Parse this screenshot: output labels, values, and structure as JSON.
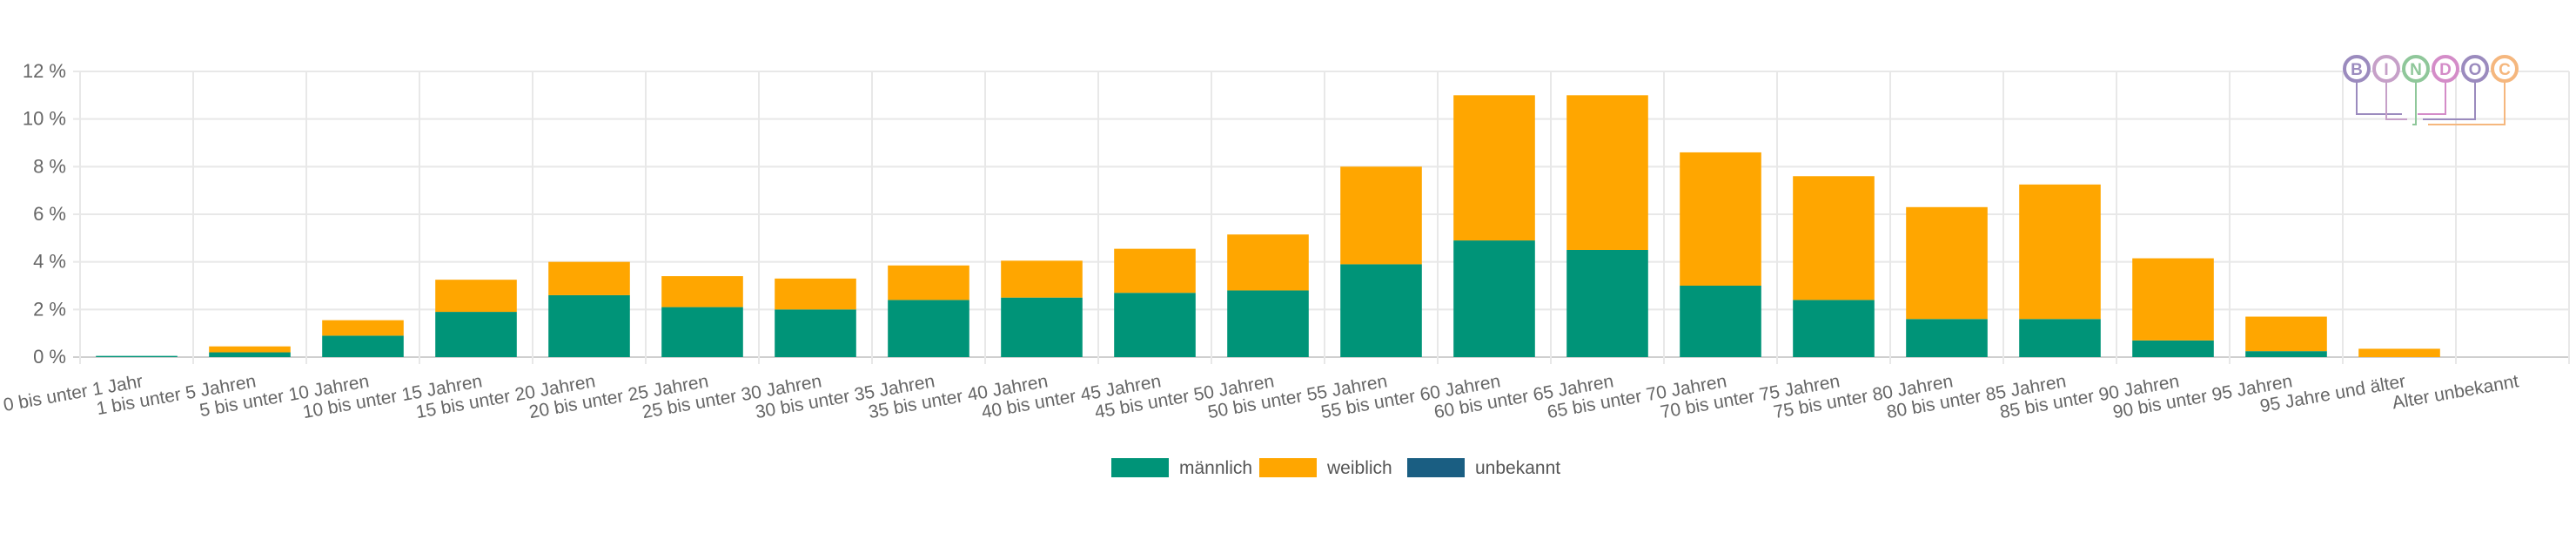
{
  "chart_data": {
    "type": "bar",
    "stacked": true,
    "categories": [
      "0 bis unter 1 Jahr",
      "1 bis unter 5 Jahren",
      "5 bis unter 10 Jahren",
      "10 bis unter 15 Jahren",
      "15 bis unter 20 Jahren",
      "20 bis unter 25 Jahren",
      "25 bis unter 30 Jahren",
      "30 bis unter 35 Jahren",
      "35 bis unter 40 Jahren",
      "40 bis unter 45 Jahren",
      "45 bis unter 50 Jahren",
      "50 bis unter 55 Jahren",
      "55 bis unter 60 Jahren",
      "60 bis unter 65 Jahren",
      "65 bis unter 70 Jahren",
      "70 bis unter 75 Jahren",
      "75 bis unter 80 Jahren",
      "80 bis unter 85 Jahren",
      "85 bis unter 90 Jahren",
      "90 bis unter 95 Jahren",
      "95 Jahre und älter",
      "Alter unbekannt"
    ],
    "series": [
      {
        "name": "männlich",
        "color": "#009478",
        "values": [
          0.05,
          0.2,
          0.9,
          1.9,
          2.6,
          2.1,
          2.0,
          2.4,
          2.5,
          2.7,
          2.8,
          3.9,
          4.9,
          4.5,
          3.0,
          2.4,
          1.6,
          1.6,
          0.7,
          0.25,
          0.0,
          0.0
        ]
      },
      {
        "name": "weiblich",
        "color": "#FFA600",
        "values": [
          0.0,
          0.25,
          0.65,
          1.35,
          1.4,
          1.3,
          1.3,
          1.45,
          1.55,
          1.85,
          2.35,
          4.1,
          6.1,
          6.5,
          5.6,
          5.2,
          4.7,
          5.65,
          3.45,
          1.45,
          0.35,
          0.0
        ]
      },
      {
        "name": "unbekannt",
        "color": "#1A5E82",
        "values": [
          0,
          0,
          0,
          0,
          0,
          0,
          0,
          0,
          0,
          0,
          0,
          0,
          0,
          0,
          0,
          0,
          0,
          0,
          0,
          0,
          0,
          0
        ]
      }
    ],
    "y_ticks": [
      "0 %",
      "2 %",
      "4 %",
      "6 %",
      "8 %",
      "10 %",
      "12 %"
    ],
    "ylim": [
      0,
      12
    ],
    "grid": true,
    "legend_position": "bottom"
  },
  "logo": {
    "letters": [
      "B",
      "I",
      "N",
      "D",
      "O",
      "C"
    ],
    "colors": [
      "#9B8BBE",
      "#C6A0C8",
      "#8FC79A",
      "#D48CC8",
      "#9B8BBE",
      "#F5B77E"
    ]
  }
}
